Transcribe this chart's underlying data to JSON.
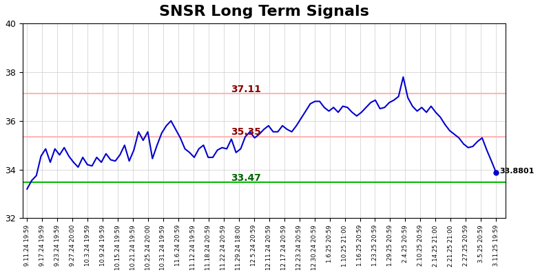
{
  "title": "SNSR Long Term Signals",
  "title_fontsize": 16,
  "title_fontweight": "bold",
  "ylim": [
    32,
    40
  ],
  "yticks": [
    32,
    34,
    36,
    38,
    40
  ],
  "line_color": "#0000cc",
  "line_width": 1.5,
  "hline_upper": 37.11,
  "hline_mid": 35.35,
  "hline_lower": 33.47,
  "hline_upper_color": "#ffb6b6",
  "hline_mid_color": "#ffb6b6",
  "hline_lower_color": "#00bb00",
  "hline_upper_linewidth": 1.5,
  "hline_mid_linewidth": 1.5,
  "hline_lower_linewidth": 1.5,
  "label_upper_text": "37.11",
  "label_upper_color": "#8b0000",
  "label_mid_text": "35.35",
  "label_mid_color": "#8b0000",
  "label_lower_text": "33.47",
  "label_lower_color": "#006600",
  "last_label": "33.8801",
  "last_label_color": "#000000",
  "endpoint_color": "#0000cc",
  "bg_color": "#ffffff",
  "grid_color": "#cccccc",
  "grid_alpha": 1.0,
  "xticklabels": [
    "9.11.24 19:59",
    "9.17.24 19:59",
    "9.23.24 19:59",
    "9.27.24 20:00",
    "10.3.24 19:59",
    "10.9.24 19:59",
    "10.15.24 19:59",
    "10.21.24 19:59",
    "10.25.24 20:00",
    "10.31.24 19:59",
    "11.6.24 20:59",
    "11.12.24 19:59",
    "11.18.24 20:59",
    "11.22.24 20:59",
    "11.29.24 18:00",
    "12.5.24 20:59",
    "12.11.24 20:59",
    "12.17.24 20:59",
    "12.23.24 20:59",
    "12.30.24 20:59",
    "1.6.25 20:59",
    "1.10.25 21:00",
    "1.16.25 20:59",
    "1.23.25 20:59",
    "1.29.25 20:59",
    "2.4.25 20:59",
    "2.10.25 20:59",
    "2.14.25 21:00",
    "2.21.25 21:00",
    "2.27.25 20:59",
    "3.5.25 20:59",
    "3.11.25 19:59"
  ],
  "y_values": [
    33.2,
    33.55,
    33.75,
    34.55,
    34.85,
    34.3,
    34.85,
    34.6,
    34.9,
    34.55,
    34.3,
    34.1,
    34.5,
    34.2,
    34.15,
    34.5,
    34.3,
    34.65,
    34.4,
    34.35,
    34.6,
    35.0,
    34.35,
    34.8,
    35.55,
    35.2,
    35.55,
    34.45,
    35.0,
    35.5,
    35.8,
    36.0,
    35.65,
    35.3,
    34.85,
    34.7,
    34.5,
    34.85,
    35.0,
    34.5,
    34.5,
    34.8,
    34.9,
    34.85,
    35.25,
    34.7,
    34.85,
    35.35,
    35.55,
    35.3,
    35.45,
    35.65,
    35.8,
    35.55,
    35.55,
    35.8,
    35.65,
    35.55,
    35.8,
    36.1,
    36.4,
    36.7,
    36.8,
    36.8,
    36.55,
    36.4,
    36.55,
    36.35,
    36.6,
    36.55,
    36.35,
    36.2,
    36.35,
    36.55,
    36.75,
    36.85,
    36.5,
    36.55,
    36.75,
    36.85,
    37.0,
    37.8,
    36.95,
    36.6,
    36.4,
    36.55,
    36.35,
    36.6,
    36.35,
    36.15,
    35.85,
    35.6,
    35.45,
    35.3,
    35.05,
    34.9,
    34.95,
    35.15,
    35.3,
    34.8,
    34.35,
    33.8801
  ]
}
